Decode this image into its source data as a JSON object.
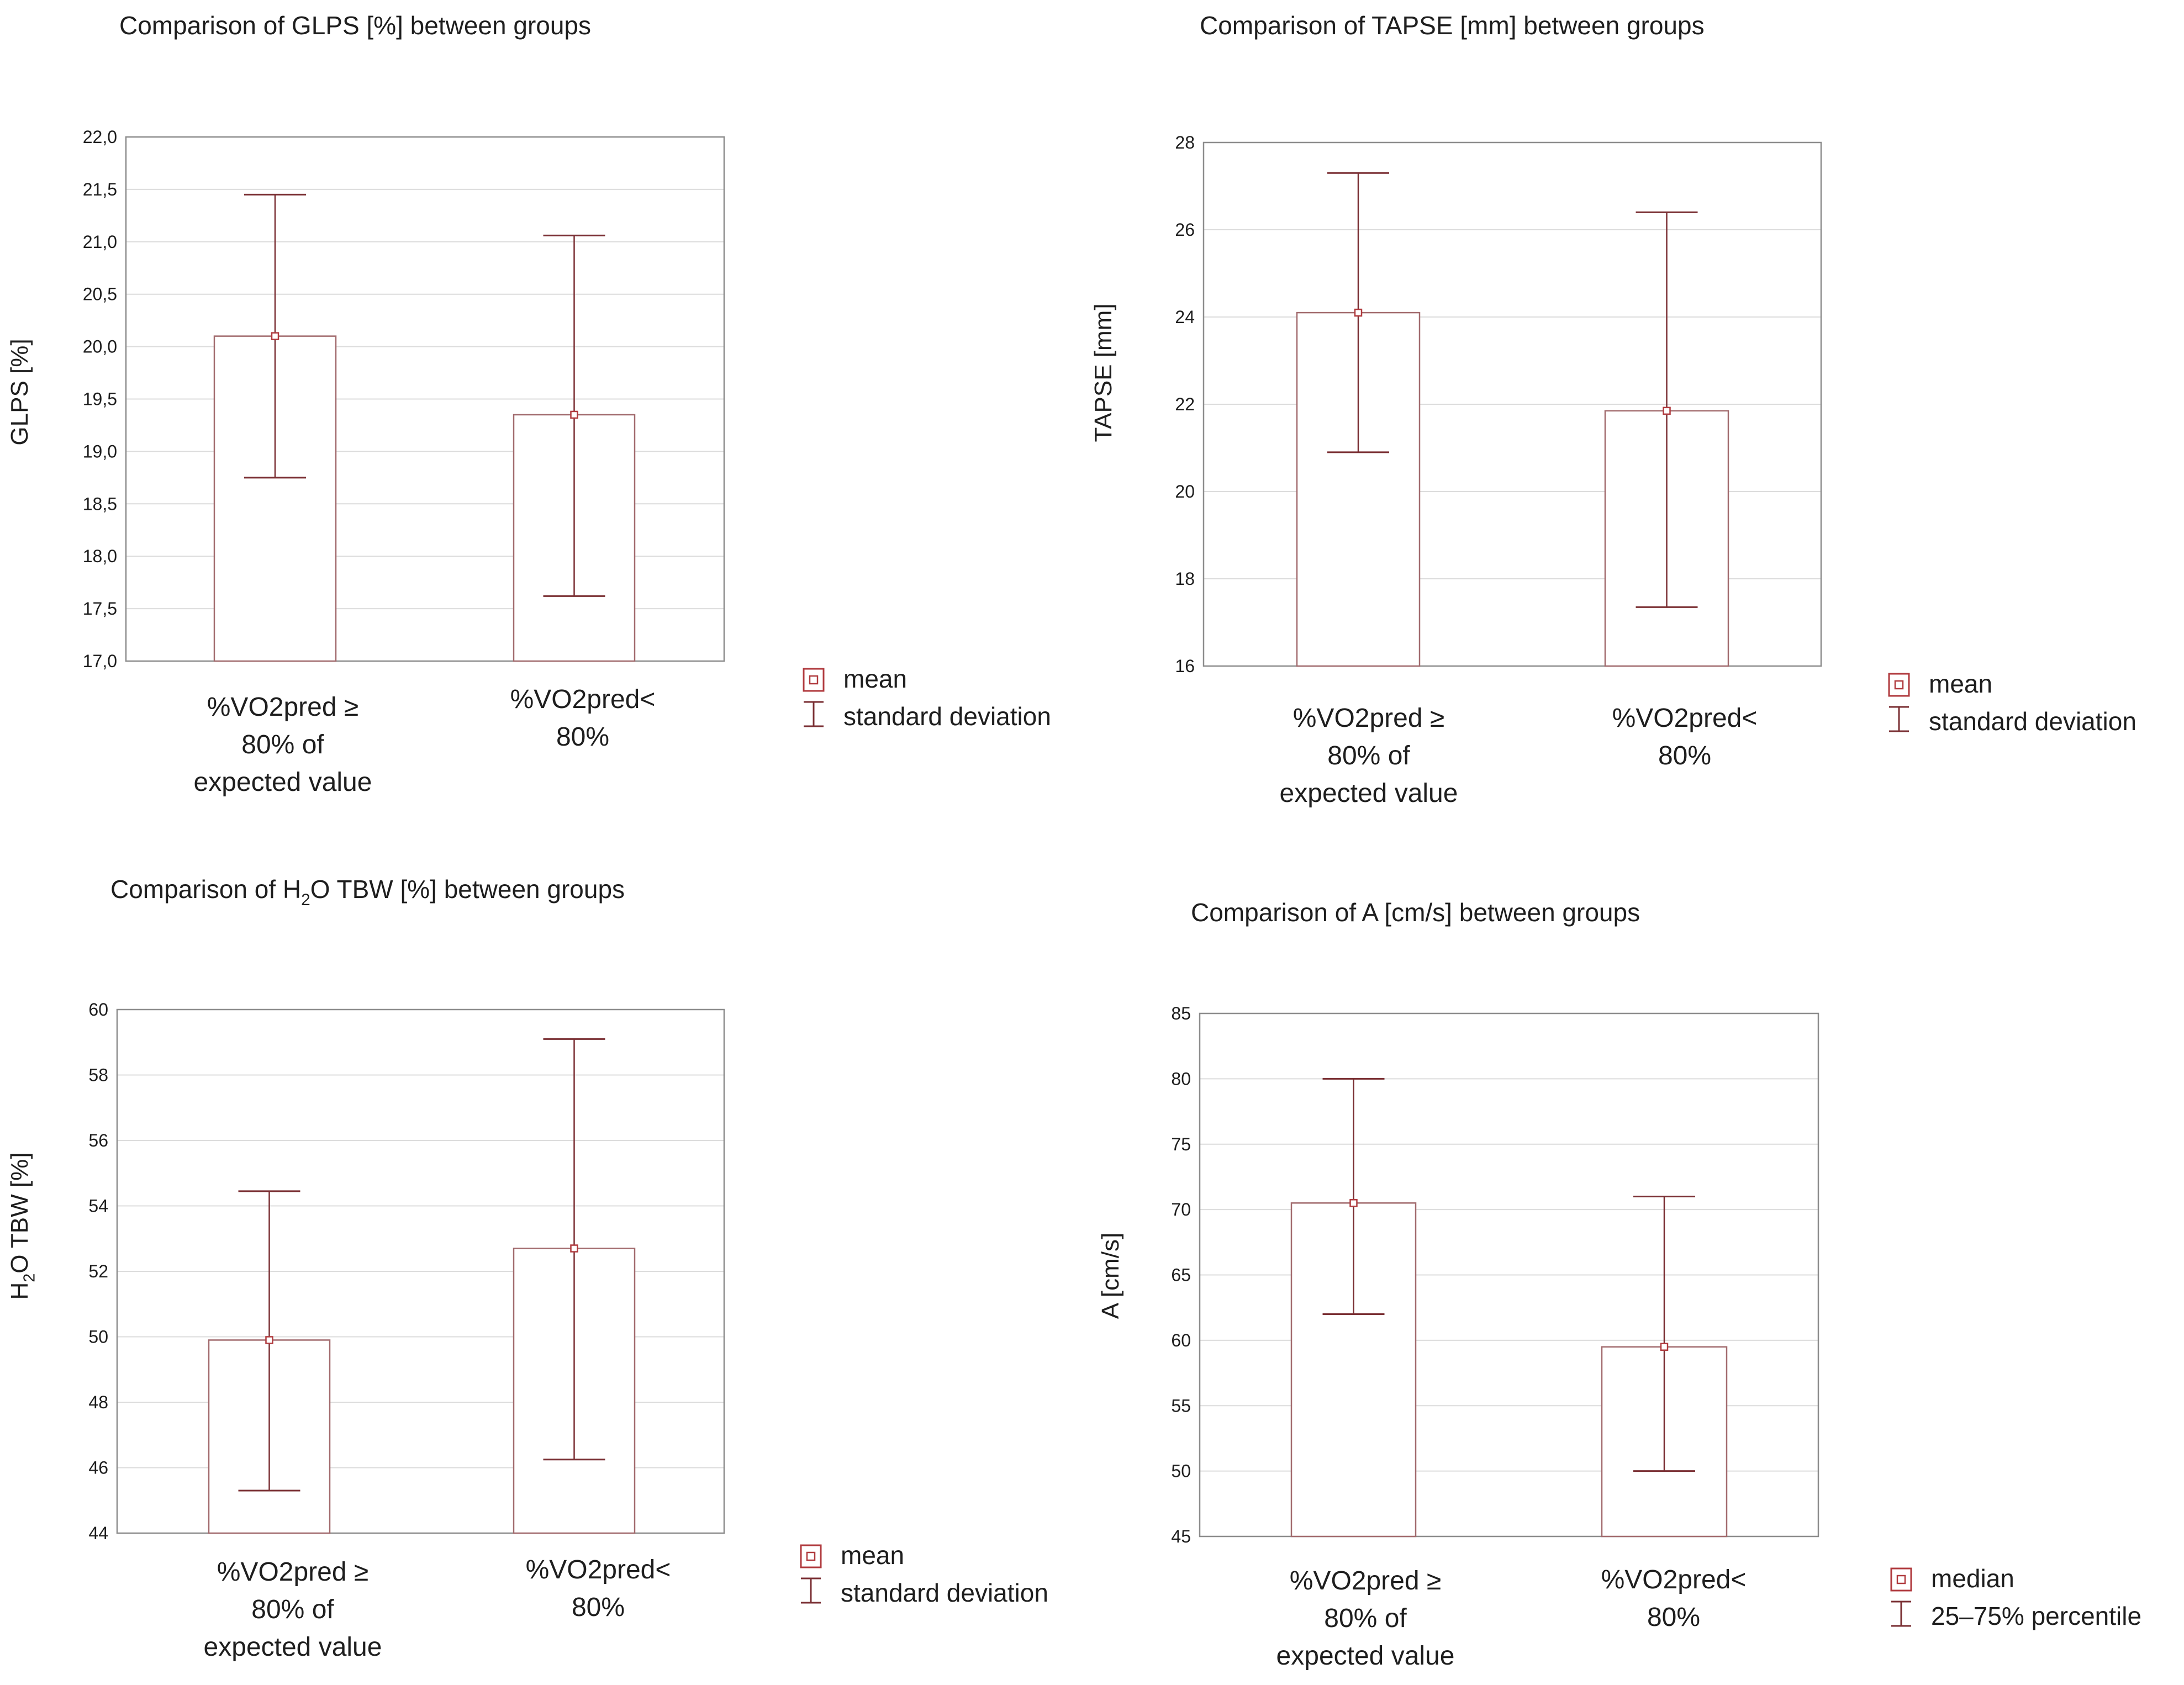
{
  "colors": {
    "bar_stroke": "#a26b6e",
    "marker": "#b03a3e",
    "error_bar": "#7a2f33",
    "grid": "#dcdcdc",
    "frame": "#8c8c8c",
    "text": "#1e1e1e"
  },
  "chart_data": [
    {
      "type": "bar",
      "title": "Comparison of GLPS [%] between groups",
      "ylabel": "GLPS [%]",
      "xlabel": "",
      "categories": [
        "%VO2pred ≥ 80% of expected value",
        "%VO2pred< 80%"
      ],
      "category_lines": [
        [
          "%VO2pred ≥",
          "80% of",
          "expected value"
        ],
        [
          "%VO2pred<",
          "80%"
        ]
      ],
      "values": [
        20.1,
        19.35
      ],
      "error_low": [
        18.75,
        17.62
      ],
      "error_high": [
        21.45,
        21.06
      ],
      "ylim": [
        17.0,
        22.0
      ],
      "yticks": [
        "17,0",
        "17,5",
        "18,0",
        "18,5",
        "19,0",
        "19,5",
        "20,0",
        "20,5",
        "21,0",
        "21,5",
        "22,0"
      ],
      "legend": [
        "mean",
        "standard deviation"
      ],
      "grid": true
    },
    {
      "type": "bar",
      "title": "Comparison of TAPSE [mm] between groups",
      "ylabel": "TAPSE [mm]",
      "xlabel": "",
      "categories": [
        "%VO2pred ≥ 80% of expected value",
        "%VO2pred< 80%"
      ],
      "category_lines": [
        [
          "%VO2pred ≥",
          "80% of",
          "expected value"
        ],
        [
          "%VO2pred<",
          "80%"
        ]
      ],
      "values": [
        24.1,
        21.85
      ],
      "error_low": [
        20.9,
        17.35
      ],
      "error_high": [
        27.3,
        26.4
      ],
      "ylim": [
        16,
        28
      ],
      "yticks": [
        "16",
        "18",
        "20",
        "22",
        "24",
        "26",
        "28"
      ],
      "legend": [
        "mean",
        "standard deviation"
      ],
      "grid": true
    },
    {
      "type": "bar",
      "title": "Comparison of H₂O TBW [%] between groups",
      "title_parts": [
        "Comparison of H",
        "2",
        "O TBW [%] between groups"
      ],
      "ylabel": "H₂O TBW [%]",
      "ylabel_parts": [
        "H",
        "2",
        "O TBW [%]"
      ],
      "xlabel": "",
      "categories": [
        "%VO2pred ≥ 80% of expected value",
        "%VO2pred< 80%"
      ],
      "category_lines": [
        [
          "%VO2pred ≥",
          "80% of",
          "expected value"
        ],
        [
          "%VO2pred<",
          "80%"
        ]
      ],
      "values": [
        49.9,
        52.7
      ],
      "error_low": [
        45.3,
        46.25
      ],
      "error_high": [
        54.45,
        59.1
      ],
      "ylim": [
        44,
        60
      ],
      "yticks": [
        "44",
        "46",
        "48",
        "50",
        "52",
        "54",
        "56",
        "58",
        "60"
      ],
      "legend": [
        "mean",
        "standard deviation"
      ],
      "grid": true
    },
    {
      "type": "bar",
      "title": "Comparison of A [cm/s] between groups",
      "ylabel": "A [cm/s]",
      "xlabel": "",
      "categories": [
        "%VO2pred ≥ 80% of expected value",
        "%VO2pred< 80%"
      ],
      "category_lines": [
        [
          "%VO2pred ≥",
          "80% of",
          "expected value"
        ],
        [
          "%VO2pred<",
          "80%"
        ]
      ],
      "values": [
        70.5,
        59.5
      ],
      "error_low": [
        62.0,
        50.0
      ],
      "error_high": [
        80.0,
        71.0
      ],
      "ylim": [
        45,
        85
      ],
      "yticks": [
        "45",
        "50",
        "55",
        "60",
        "65",
        "70",
        "75",
        "80",
        "85"
      ],
      "legend": [
        "median",
        "25–75%  percentile"
      ],
      "grid": true
    }
  ]
}
